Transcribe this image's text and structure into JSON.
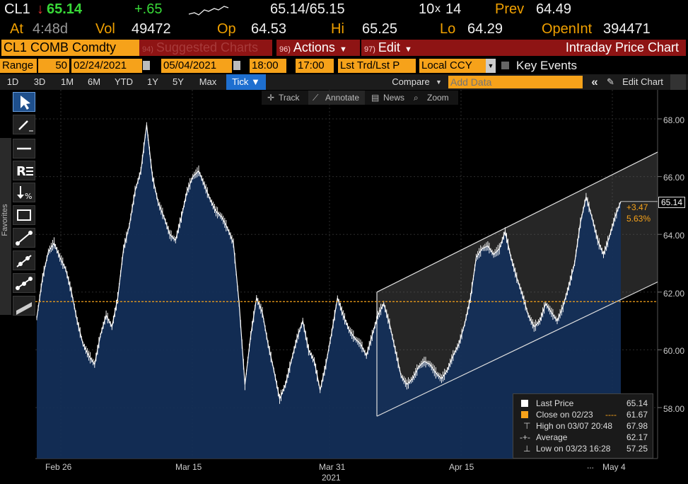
{
  "header": {
    "ticker": "CL1",
    "arrow": "↓",
    "last": "65.14",
    "change": "+.65",
    "bid_ask": "65.14/65.15",
    "size_a": "10",
    "size_x": "x",
    "size_b": "14",
    "prev_label": "Prev",
    "prev": "64.49",
    "at_label": "At",
    "at_time": "4:48d",
    "vol_label": "Vol",
    "vol": "49472",
    "op_label": "Op",
    "op": "64.53",
    "hi_label": "Hi",
    "hi": "65.25",
    "lo_label": "Lo",
    "lo": "64.29",
    "oi_label": "OpenInt",
    "oi": "394471"
  },
  "menubar": {
    "security": "CL1 COMB Comdty",
    "suggested_num": "94)",
    "suggested": "Suggested Charts",
    "actions_num": "96)",
    "actions": "Actions",
    "edit_num": "97)",
    "edit": "Edit",
    "title": "Intraday Price Chart"
  },
  "range_row": {
    "range_label": "Range",
    "bars": "50",
    "start_date": "02/24/2021",
    "end_date": "05/04/2021",
    "start_time": "18:00",
    "end_time": "17:00",
    "price_type": "Lst Trd/Lst P",
    "currency": "Local CCY",
    "key_events": "Key Events"
  },
  "tabs": {
    "items": [
      "1D",
      "3D",
      "1M",
      "6M",
      "YTD",
      "1Y",
      "5Y",
      "Max"
    ],
    "tick": "Tick ▼",
    "compare": "Compare",
    "add_data_placeholder": "Add Data",
    "collapse": "«",
    "edit_chart": "Edit Chart"
  },
  "chart_tools": {
    "track": "Track",
    "annotate": "Annotate",
    "news": "News",
    "zoom": "Zoom"
  },
  "sidebar": {
    "favorites": "Favorites"
  },
  "chart_data": {
    "type": "area",
    "ylim": [
      56.5,
      69.0
    ],
    "yticks": [
      "68.00",
      "66.00",
      "64.00",
      "62.00",
      "60.00",
      "58.00"
    ],
    "xticks": [
      "Feb 26",
      "Mar 15",
      "Mar 31",
      "Apr 15",
      "May 4"
    ],
    "x_year": "2021",
    "x_ellipsis": "...",
    "last_price_tag": "65.14",
    "change_abs": "+3.47",
    "change_pct": "5.63%",
    "reference_line": 61.67,
    "trend_channel": {
      "upper": [
        [
          0.0,
          62.0
        ],
        [
          1.0,
          66.85
        ]
      ],
      "lower": [
        [
          0.0,
          57.7
        ],
        [
          1.0,
          62.35
        ]
      ]
    },
    "series": [
      {
        "name": "Last Price",
        "values": [
          61.1,
          62.5,
          63.4,
          63.7,
          63.2,
          62.8,
          62.0,
          61.0,
          60.2,
          59.8,
          59.5,
          60.5,
          61.2,
          60.8,
          61.8,
          63.5,
          64.3,
          65.5,
          66.2,
          67.8,
          66.0,
          65.1,
          64.6,
          64.0,
          63.8,
          64.6,
          65.5,
          66.0,
          66.2,
          65.7,
          65.2,
          64.8,
          64.6,
          64.2,
          63.7,
          61.6,
          58.8,
          60.5,
          61.8,
          61.3,
          60.2,
          59.3,
          58.3,
          58.8,
          59.6,
          60.4,
          61.0,
          60.0,
          59.6,
          58.6,
          59.5,
          60.6,
          61.8,
          61.2,
          60.7,
          60.4,
          60.2,
          59.8,
          60.5,
          61.2,
          61.6,
          60.9,
          60.0,
          59.1,
          58.8,
          59.0,
          59.4,
          59.6,
          59.5,
          59.2,
          59.0,
          59.3,
          59.8,
          60.2,
          60.9,
          61.8,
          63.2,
          63.5,
          63.6,
          63.3,
          63.5,
          64.1,
          63.2,
          62.5,
          61.9,
          61.2,
          60.8,
          61.0,
          61.6,
          61.3,
          61.0,
          61.5,
          62.2,
          63.0,
          64.4,
          65.3,
          64.6,
          63.8,
          63.3,
          63.9,
          64.6,
          65.14
        ]
      }
    ],
    "legend": {
      "last_price_label": "Last Price",
      "last_price": "65.14",
      "close_label": "Close on 02/23",
      "close": "61.67",
      "close_dashes": "----",
      "high_label": "High on 03/07 20:48",
      "high": "67.98",
      "average_label": "Average",
      "average": "62.17",
      "low_label": "Low on 03/23 16:28",
      "low": "57.25"
    }
  },
  "colors": {
    "orange": "#f6a21a",
    "area_fill": "#14305a",
    "dark_red": "#8e1414",
    "blue_tab": "#1e6fd0",
    "green": "#38d838",
    "red": "#e03030"
  }
}
